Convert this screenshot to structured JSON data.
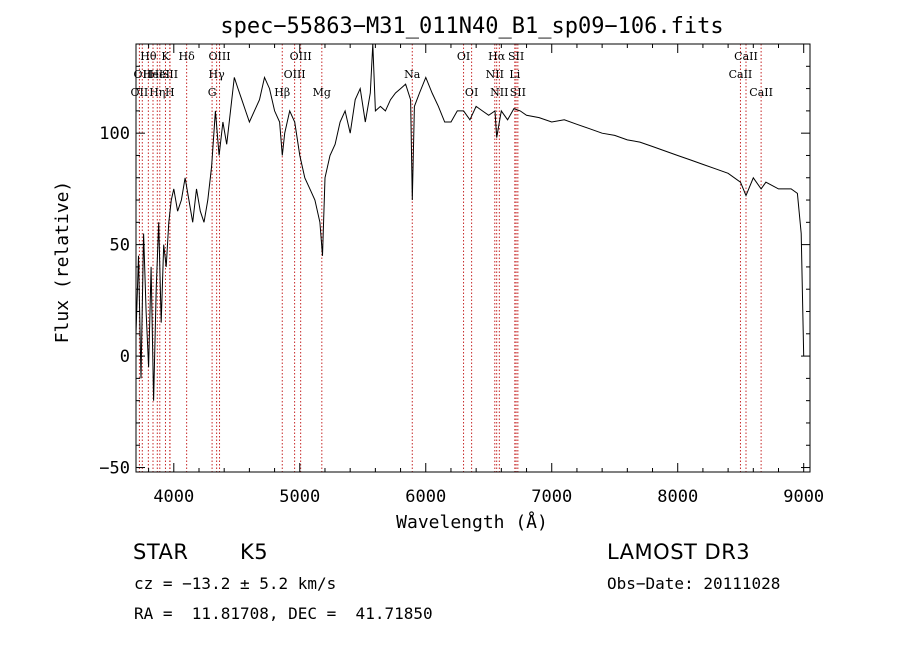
{
  "chart_data": {
    "type": "line",
    "title": "spec−55863−M31_011N40_B1_sp09−106.fits",
    "xlabel": "Wavelength (Å)",
    "ylabel": "Flux (relative)",
    "xlim": [
      3700,
      9050
    ],
    "ylim": [
      -52,
      140
    ],
    "x_ticks": [
      4000,
      5000,
      6000,
      7000,
      8000,
      9000
    ],
    "y_ticks": [
      -50,
      0,
      50,
      100
    ],
    "series": [
      {
        "name": "flux",
        "x": [
          3700,
          3720,
          3740,
          3760,
          3780,
          3800,
          3820,
          3840,
          3860,
          3880,
          3900,
          3920,
          3940,
          3960,
          3980,
          4000,
          4030,
          4060,
          4090,
          4120,
          4150,
          4180,
          4210,
          4240,
          4270,
          4300,
          4330,
          4360,
          4390,
          4420,
          4450,
          4480,
          4510,
          4540,
          4570,
          4600,
          4640,
          4680,
          4720,
          4760,
          4800,
          4840,
          4861,
          4880,
          4920,
          4960,
          5000,
          5040,
          5080,
          5120,
          5160,
          5180,
          5200,
          5240,
          5280,
          5320,
          5360,
          5400,
          5440,
          5480,
          5520,
          5560,
          5580,
          5600,
          5640,
          5680,
          5720,
          5760,
          5800,
          5840,
          5880,
          5893,
          5910,
          5950,
          6000,
          6050,
          6100,
          6150,
          6200,
          6250,
          6300,
          6350,
          6400,
          6450,
          6500,
          6550,
          6563,
          6600,
          6650,
          6700,
          6750,
          6800,
          6900,
          7000,
          7100,
          7200,
          7300,
          7400,
          7500,
          7600,
          7700,
          7800,
          7900,
          8000,
          8100,
          8200,
          8300,
          8400,
          8498,
          8542,
          8600,
          8662,
          8700,
          8800,
          8900,
          8950,
          8980,
          9000
        ],
        "values": [
          10,
          45,
          -10,
          55,
          20,
          -5,
          40,
          -20,
          30,
          60,
          15,
          50,
          40,
          60,
          70,
          75,
          65,
          70,
          80,
          70,
          60,
          75,
          65,
          60,
          70,
          85,
          110,
          90,
          105,
          95,
          110,
          125,
          120,
          115,
          110,
          105,
          110,
          115,
          125,
          120,
          110,
          105,
          90,
          100,
          110,
          105,
          90,
          80,
          75,
          70,
          60,
          45,
          80,
          90,
          95,
          105,
          110,
          100,
          115,
          120,
          105,
          118,
          140,
          110,
          112,
          110,
          115,
          118,
          120,
          122,
          115,
          70,
          112,
          118,
          125,
          118,
          112,
          105,
          105,
          110,
          110,
          106,
          112,
          110,
          108,
          110,
          98,
          110,
          106,
          111,
          110,
          108,
          107,
          105,
          106,
          104,
          102,
          100,
          99,
          97,
          96,
          94,
          92,
          90,
          88,
          86,
          84,
          82,
          78,
          72,
          80,
          75,
          78,
          75,
          75,
          73,
          55,
          0
        ]
      }
    ],
    "line_markers": [
      {
        "wavelength": 3727,
        "row": 3,
        "label": "OII"
      },
      {
        "wavelength": 3750,
        "row": 2,
        "label": "OII"
      },
      {
        "wavelength": 3798,
        "row": 1,
        "label": "Hθ"
      },
      {
        "wavelength": 3835,
        "row": 2,
        "label": "HeI"
      },
      {
        "wavelength": 3869,
        "row": 3,
        "label": "Hη"
      },
      {
        "wavelength": 3889,
        "row": 2,
        "label": "HeI"
      },
      {
        "wavelength": 3934,
        "row": 1,
        "label": "K"
      },
      {
        "wavelength": 3968,
        "row": 3,
        "label": "H"
      },
      {
        "wavelength": 3970,
        "row": 2,
        "label": "SII"
      },
      {
        "wavelength": 4102,
        "row": 1,
        "label": "Hδ"
      },
      {
        "wavelength": 4304,
        "row": 3,
        "label": "G"
      },
      {
        "wavelength": 4340,
        "row": 2,
        "label": "Hγ"
      },
      {
        "wavelength": 4363,
        "row": 1,
        "label": "OIII"
      },
      {
        "wavelength": 4861,
        "row": 3,
        "label": "Hβ"
      },
      {
        "wavelength": 4959,
        "row": 2,
        "label": "OIII"
      },
      {
        "wavelength": 5007,
        "row": 1,
        "label": "OIII"
      },
      {
        "wavelength": 5175,
        "row": 3,
        "label": "Mg"
      },
      {
        "wavelength": 5893,
        "row": 2,
        "label": "Na"
      },
      {
        "wavelength": 6300,
        "row": 1,
        "label": "OI"
      },
      {
        "wavelength": 6364,
        "row": 3,
        "label": "OI"
      },
      {
        "wavelength": 6548,
        "row": 2,
        "label": "NII"
      },
      {
        "wavelength": 6563,
        "row": 1,
        "label": "Hα"
      },
      {
        "wavelength": 6584,
        "row": 3,
        "label": "NII"
      },
      {
        "wavelength": 6707,
        "row": 2,
        "label": "Li"
      },
      {
        "wavelength": 6717,
        "row": 1,
        "label": "SII"
      },
      {
        "wavelength": 6731,
        "row": 3,
        "label": "SII"
      },
      {
        "wavelength": 8498,
        "row": 2,
        "label": "CaII"
      },
      {
        "wavelength": 8542,
        "row": 1,
        "label": "CaII"
      },
      {
        "wavelength": 8662,
        "row": 3,
        "label": "CaII"
      }
    ],
    "marker_color": "#c62828"
  },
  "info": {
    "object_type": "STAR",
    "subclass": "K5",
    "survey": "LAMOST DR3",
    "redshift": "cz = −13.2 ± 5.2 km/s",
    "obs_date": "Obs−Date: 20111028",
    "coords": "RA =  11.81708, DEC =  41.71850"
  }
}
